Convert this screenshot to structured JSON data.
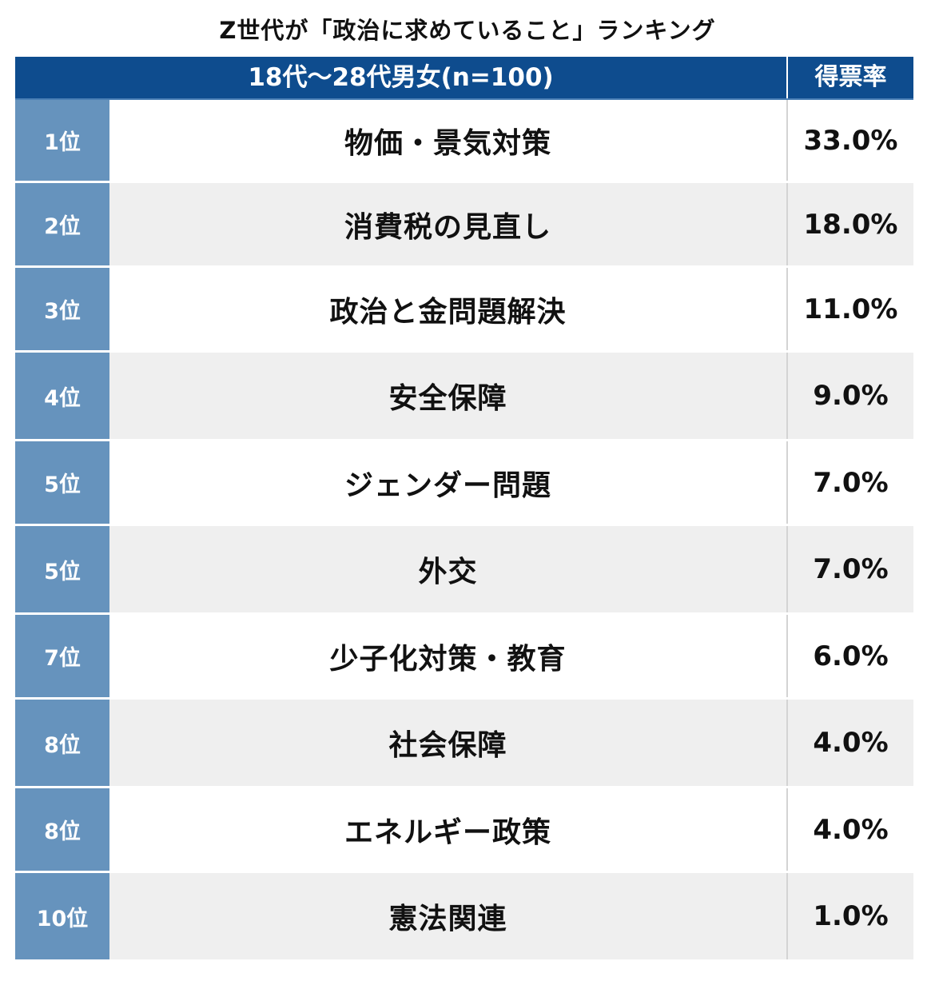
{
  "title": "Z世代が「政治に求めていること」ランキング",
  "header": {
    "group_label": "18代〜28代男女(n=100)",
    "rate_label": "得票率"
  },
  "chart_data": {
    "type": "table",
    "title": "Z世代が「政治に求めていること」ランキング",
    "columns": [
      "18代〜28代男女(n=100)",
      "得票率"
    ],
    "rows": [
      {
        "rank": "1位",
        "item": "物価・景気対策",
        "rate": "33.0%",
        "value": 33.0
      },
      {
        "rank": "2位",
        "item": "消費税の見直し",
        "rate": "18.0%",
        "value": 18.0
      },
      {
        "rank": "3位",
        "item": "政治と金問題解決",
        "rate": "11.0%",
        "value": 11.0
      },
      {
        "rank": "4位",
        "item": "安全保障",
        "rate": "9.0%",
        "value": 9.0
      },
      {
        "rank": "5位",
        "item": "ジェンダー問題",
        "rate": "7.0%",
        "value": 7.0
      },
      {
        "rank": "5位",
        "item": "外交",
        "rate": "7.0%",
        "value": 7.0
      },
      {
        "rank": "7位",
        "item": "少子化対策・教育",
        "rate": "6.0%",
        "value": 6.0
      },
      {
        "rank": "8位",
        "item": "社会保障",
        "rate": "4.0%",
        "value": 4.0
      },
      {
        "rank": "8位",
        "item": "エネルギー政策",
        "rate": "4.0%",
        "value": 4.0
      },
      {
        "rank": "10位",
        "item": "憲法関連",
        "rate": "1.0%",
        "value": 1.0
      }
    ]
  },
  "colors": {
    "header_bg": "#0e4c8e",
    "rank_bg": "#6693bd",
    "row_alt_bg": "#efefef"
  }
}
